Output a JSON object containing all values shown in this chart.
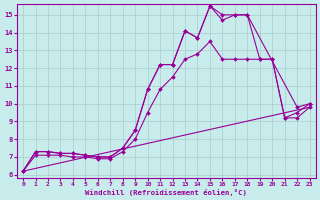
{
  "xlabel": "Windchill (Refroidissement éolien,°C)",
  "background_color": "#c8ecec",
  "line_color": "#990099",
  "grid_color": "#aacccc",
  "xlim": [
    -0.5,
    23.5
  ],
  "ylim": [
    5.8,
    15.6
  ],
  "yticks": [
    6,
    7,
    8,
    9,
    10,
    11,
    12,
    13,
    14,
    15
  ],
  "xticks": [
    0,
    1,
    2,
    3,
    4,
    5,
    6,
    7,
    8,
    9,
    10,
    11,
    12,
    13,
    14,
    15,
    16,
    17,
    18,
    19,
    20,
    21,
    22,
    23
  ],
  "lines": [
    {
      "x": [
        0,
        1,
        2,
        3,
        4,
        5,
        6,
        7,
        8,
        9,
        10,
        11,
        12,
        13,
        14,
        15,
        16,
        17,
        18,
        22,
        23
      ],
      "y": [
        6.2,
        7.3,
        7.3,
        7.2,
        7.2,
        7.1,
        7.0,
        7.0,
        7.5,
        8.5,
        10.8,
        12.2,
        12.2,
        14.1,
        13.7,
        15.5,
        15.0,
        15.0,
        15.0,
        9.8,
        10.0
      ],
      "has_markers": true
    },
    {
      "x": [
        0,
        1,
        2,
        3,
        4,
        5,
        6,
        7,
        8,
        9,
        10,
        11,
        12,
        13,
        14,
        15,
        16,
        17,
        18,
        19,
        20,
        21,
        22,
        23
      ],
      "y": [
        6.2,
        7.3,
        7.3,
        7.2,
        7.2,
        7.1,
        7.0,
        7.0,
        7.5,
        8.5,
        10.8,
        12.2,
        12.2,
        14.1,
        13.7,
        15.5,
        14.7,
        15.0,
        15.0,
        12.5,
        12.5,
        9.2,
        9.2,
        9.8
      ],
      "has_markers": true
    },
    {
      "x": [
        0,
        1,
        2,
        3,
        4,
        5,
        6,
        7,
        8,
        9,
        10,
        11,
        12,
        13,
        14,
        15,
        16,
        17,
        18,
        19,
        20,
        21,
        22,
        23
      ],
      "y": [
        6.2,
        7.1,
        7.1,
        7.1,
        7.0,
        7.0,
        6.9,
        6.9,
        7.3,
        8.0,
        9.5,
        10.8,
        11.5,
        12.5,
        12.8,
        13.5,
        12.5,
        12.5,
        12.5,
        12.5,
        12.5,
        9.2,
        9.5,
        10.0
      ],
      "has_markers": true
    },
    {
      "x": [
        0,
        23
      ],
      "y": [
        6.2,
        9.8
      ],
      "has_markers": false
    }
  ]
}
